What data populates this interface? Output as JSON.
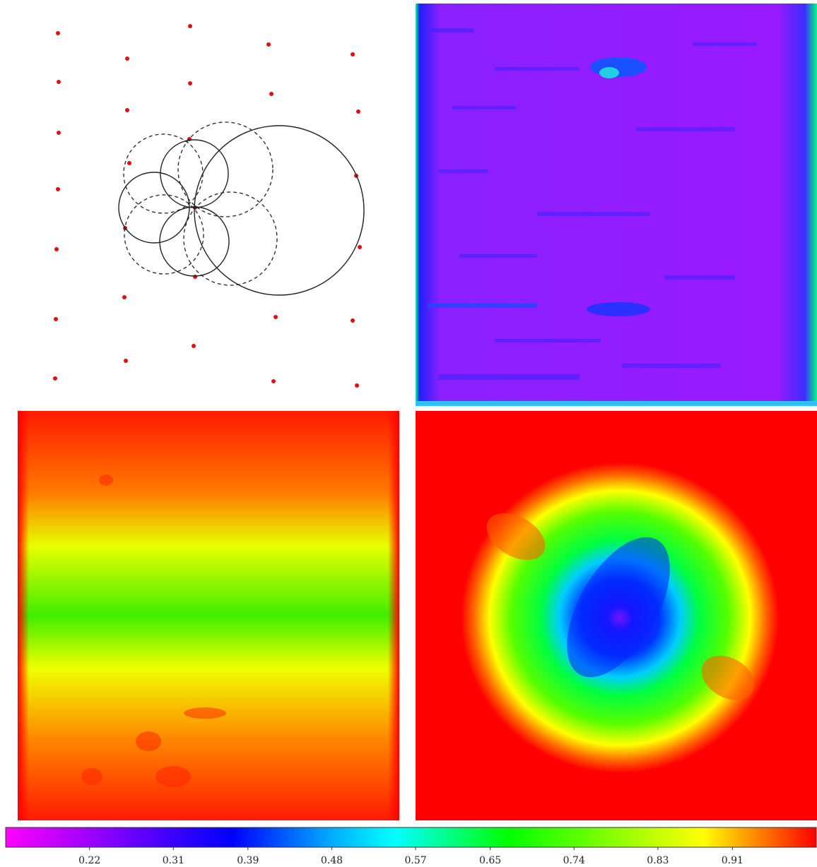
{
  "chart_data": {
    "type": "colorbar",
    "xlim": [
      0.13,
      1.0
    ],
    "xticks": [
      0.22,
      0.31,
      0.39,
      0.48,
      0.57,
      0.65,
      0.74,
      0.83,
      0.91
    ]
  }
}
